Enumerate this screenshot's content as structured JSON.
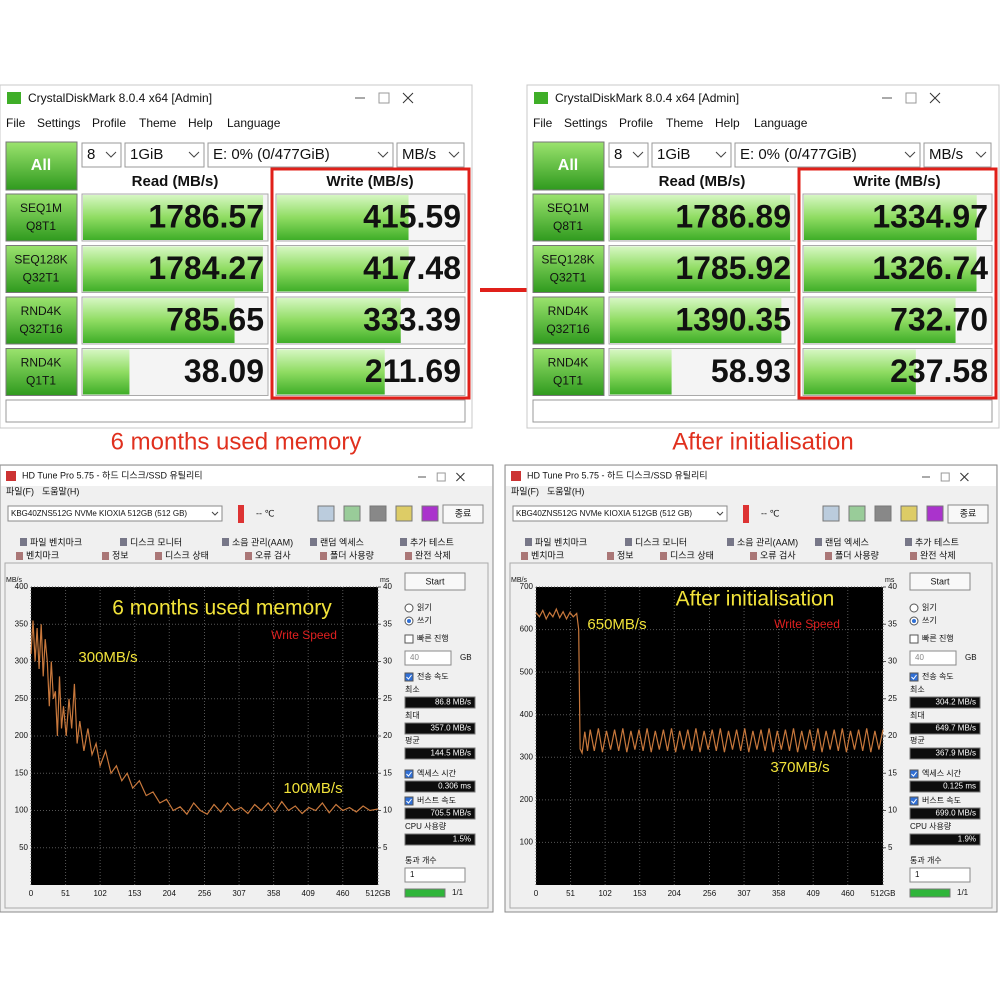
{
  "cdm": [
    {
      "title": "CrystalDiskMark 8.0.4 x64 [Admin]",
      "menu": [
        "File",
        "Settings",
        "Profile",
        "Theme",
        "Help",
        "Language"
      ],
      "all": "All",
      "count": "8",
      "size": "1GiB",
      "drive": "E: 0% (0/477GiB)",
      "unit": "MB/s",
      "read_header": "Read (MB/s)",
      "write_header": "Write (MB/s)",
      "tests": [
        [
          "SEQ1M",
          "Q8T1"
        ],
        [
          "SEQ128K",
          "Q32T1"
        ],
        [
          "RND4K",
          "Q32T16"
        ],
        [
          "RND4K",
          "Q1T1"
        ]
      ],
      "read": {
        "values": [
          1786.57,
          1784.27,
          785.65,
          38.09
        ]
      },
      "write": {
        "values": [
          415.59,
          417.48,
          333.39,
          211.69
        ]
      },
      "caption": "6 months used memory"
    },
    {
      "title": "CrystalDiskMark 8.0.4 x64 [Admin]",
      "menu": [
        "File",
        "Settings",
        "Profile",
        "Theme",
        "Help",
        "Language"
      ],
      "all": "All",
      "count": "8",
      "size": "1GiB",
      "drive": "E: 0% (0/477GiB)",
      "unit": "MB/s",
      "read_header": "Read (MB/s)",
      "write_header": "Write (MB/s)",
      "tests": [
        [
          "SEQ1M",
          "Q8T1"
        ],
        [
          "SEQ128K",
          "Q32T1"
        ],
        [
          "RND4K",
          "Q32T16"
        ],
        [
          "RND4K",
          "Q1T1"
        ]
      ],
      "read": {
        "values": [
          1786.89,
          1785.92,
          1390.35,
          58.93
        ]
      },
      "write": {
        "values": [
          1334.97,
          1326.74,
          732.7,
          237.58
        ],
        "value_labels": [
          "1334.97",
          "1326.74",
          "732.70",
          "237.58"
        ]
      },
      "caption": "After initialisation"
    }
  ],
  "hdtune": [
    {
      "title": "HD Tune Pro 5.75 - 하드 디스크/SSD 유틸리티",
      "menu": [
        "파일(F)",
        "도움말(H)"
      ],
      "drive": "KBG40ZNS512G NVMe KIOXIA 512GB (512 GB)",
      "temp": "-- ℃",
      "exit": "종료",
      "tabs_top": [
        "파일 벤치마크",
        "디스크 모니터",
        "소음 관리(AAM)",
        "랜덤 엑세스",
        "추가 테스트"
      ],
      "tabs_bottom": [
        "벤치마크",
        "정보",
        "디스크 상태",
        "오류 검사",
        "폴더 사용량",
        "완전 삭제"
      ],
      "graph": {
        "heading": "6 months used memory",
        "legend": "Write Speed",
        "notes": [
          "300MB/s",
          "100MB/s"
        ],
        "y_label": "MB/s",
        "y2_label": "ms",
        "color": "#c8783c",
        "xlim": [
          0,
          512
        ],
        "xticks": [
          0,
          51,
          102,
          153,
          204,
          256,
          307,
          358,
          409,
          460,
          {
            "value": 512,
            "label": "512GB"
          }
        ],
        "ylim": [
          0,
          400
        ],
        "yticks": [
          50,
          100,
          150,
          200,
          250,
          300,
          350,
          400
        ],
        "y2lim": [
          0,
          40
        ],
        "y2ticks": [
          5,
          10,
          15,
          20,
          25,
          30,
          35,
          40
        ],
        "series": {
          "x": [
            0,
            3,
            6,
            9,
            12,
            15,
            18,
            21,
            24,
            27,
            30,
            33,
            36,
            39,
            42,
            45,
            48,
            52,
            56,
            60,
            64,
            68,
            72,
            78,
            84,
            90,
            96,
            102,
            110,
            118,
            126,
            134,
            142,
            150,
            160,
            170,
            180,
            190,
            200,
            210,
            220,
            230,
            240,
            250,
            260,
            270,
            280,
            290,
            300,
            310,
            320,
            330,
            340,
            350,
            360,
            370,
            380,
            390,
            400,
            410,
            420,
            430,
            440,
            450,
            460,
            470,
            480,
            490,
            500,
            512
          ],
          "values": [
            310,
            355,
            300,
            345,
            290,
            350,
            280,
            330,
            300,
            240,
            300,
            250,
            260,
            200,
            280,
            210,
            240,
            200,
            250,
            210,
            270,
            190,
            220,
            180,
            210,
            175,
            190,
            160,
            180,
            150,
            160,
            140,
            150,
            130,
            140,
            120,
            125,
            110,
            115,
            100,
            105,
            95,
            110,
            100,
            95,
            108,
            98,
            110,
            100,
            104,
            96,
            108,
            100,
            110,
            98,
            112,
            100,
            106,
            96,
            104,
            100,
            110,
            97,
            108,
            100,
            104,
            98,
            106,
            100,
            102
          ]
        }
      },
      "start": "Start",
      "read": "읽기",
      "write": "쓰기",
      "quick": "빠른 진행",
      "quick_size": "40",
      "quick_unit": "GB",
      "transfer": "전송 속도",
      "stats": [
        {
          "label": "최소",
          "value": "86.8 MB/s"
        },
        {
          "label": "최대",
          "value": "357.0 MB/s"
        },
        {
          "label": "평균",
          "value": "144.5 MB/s"
        },
        {
          "label": "엑세스 시간",
          "value": "0.306 ms"
        },
        {
          "label": "버스트 속도",
          "value": "705.5 MB/s"
        },
        {
          "label": "CPU 사용량",
          "value": "1.5%"
        }
      ],
      "passes": {
        "label": "통과 개수",
        "value": "1"
      },
      "progress": "1/1"
    },
    {
      "title": "HD Tune Pro 5.75 - 하드 디스크/SSD 유틸리티",
      "menu": [
        "파일(F)",
        "도움말(H)"
      ],
      "drive": "KBG40ZNS512G NVMe KIOXIA 512GB (512 GB)",
      "temp": "-- ℃",
      "exit": "종료",
      "tabs_top": [
        "파일 벤치마크",
        "디스크 모니터",
        "소음 관리(AAM)",
        "랜덤 엑세스",
        "추가 테스트"
      ],
      "tabs_bottom": [
        "벤치마크",
        "정보",
        "디스크 상태",
        "오류 검사",
        "폴더 사용량",
        "완전 삭제"
      ],
      "graph": {
        "heading": "After initialisation",
        "legend": "Write Speed",
        "notes": [
          "650MB/s",
          "370MB/s"
        ],
        "y_label": "MB/s",
        "y2_label": "ms",
        "color": "#c8783c",
        "xlim": [
          0,
          512
        ],
        "xticks": [
          0,
          51,
          102,
          153,
          204,
          256,
          307,
          358,
          409,
          460,
          {
            "value": 512,
            "label": "512GB"
          }
        ],
        "ylim": [
          0,
          700
        ],
        "yticks": [
          100,
          200,
          300,
          400,
          500,
          600,
          700
        ],
        "y2lim": [
          0,
          40
        ],
        "y2ticks": [
          5,
          10,
          15,
          20,
          25,
          30,
          35,
          40
        ],
        "series": {
          "x": [
            0,
            5,
            10,
            15,
            20,
            25,
            30,
            35,
            40,
            45,
            50,
            55,
            60,
            63,
            65,
            68,
            72,
            76,
            80,
            86,
            92,
            98,
            104,
            110,
            116,
            122,
            128,
            134,
            140,
            146,
            152,
            158,
            164,
            170,
            176,
            182,
            188,
            194,
            200,
            206,
            212,
            218,
            224,
            230,
            236,
            242,
            248,
            254,
            260,
            266,
            272,
            278,
            284,
            290,
            296,
            302,
            308,
            314,
            320,
            326,
            332,
            338,
            344,
            350,
            356,
            362,
            368,
            374,
            380,
            386,
            392,
            398,
            404,
            410,
            416,
            422,
            428,
            434,
            440,
            446,
            452,
            458,
            464,
            470,
            476,
            482,
            488,
            494,
            500,
            506,
            512
          ],
          "values": [
            640,
            630,
            645,
            625,
            640,
            630,
            648,
            628,
            642,
            625,
            640,
            630,
            638,
            600,
            320,
            310,
            360,
            315,
            365,
            315,
            368,
            312,
            362,
            318,
            365,
            315,
            368,
            312,
            362,
            318,
            365,
            315,
            368,
            312,
            362,
            318,
            365,
            315,
            368,
            312,
            362,
            318,
            365,
            315,
            368,
            312,
            362,
            318,
            365,
            315,
            368,
            312,
            362,
            318,
            365,
            315,
            368,
            312,
            362,
            318,
            365,
            315,
            368,
            312,
            362,
            318,
            365,
            315,
            368,
            312,
            362,
            318,
            365,
            315,
            368,
            312,
            362,
            318,
            365,
            315,
            368,
            312,
            362,
            318,
            365,
            315,
            368,
            312,
            362,
            318,
            365
          ]
        }
      },
      "start": "Start",
      "read": "읽기",
      "write": "쓰기",
      "quick": "빠른 진행",
      "quick_size": "40",
      "quick_unit": "GB",
      "transfer": "전송 속도",
      "stats": [
        {
          "label": "최소",
          "value": "304.2 MB/s"
        },
        {
          "label": "최대",
          "value": "649.7 MB/s"
        },
        {
          "label": "평균",
          "value": "367.9 MB/s"
        },
        {
          "label": "엑세스 시간",
          "value": "0.125 ms"
        },
        {
          "label": "버스트 속도",
          "value": "699.0 MB/s"
        },
        {
          "label": "CPU 사용량",
          "value": "1.9%"
        }
      ],
      "passes": {
        "label": "통과 개수",
        "value": "1"
      },
      "progress": "1/1"
    }
  ]
}
